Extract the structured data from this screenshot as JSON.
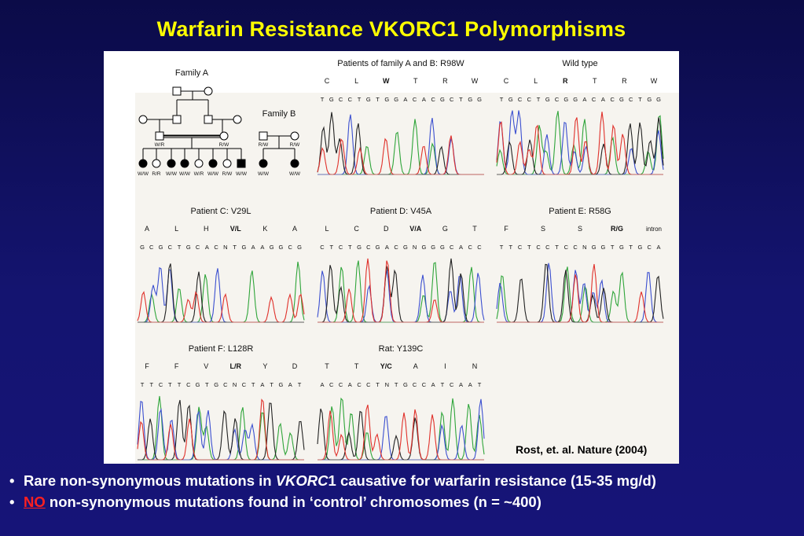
{
  "slide": {
    "title": "Warfarin Resistance VKORC1 Polymorphisms",
    "citation": "Rost, et. al. Nature (2004)",
    "bullets": [
      {
        "pre": "Rare non-synonymous mutations in ",
        "gene": "VKORC",
        "post": "1 causative for warfarin resistance (15-35 mg/d)"
      },
      {
        "flag": "NO",
        "post": " non-synonymous mutations found in ‘control’ chromosomes (n = ~400)"
      }
    ]
  },
  "pedigree": {
    "family_a": {
      "label": "Family A",
      "parent_genotypes": [
        "W/R",
        "R/W"
      ],
      "children_genotypes": [
        "W/W",
        "R/R",
        "W/W",
        "W/W",
        "W/R",
        "W/W",
        "R/W",
        "W/W"
      ]
    },
    "family_b": {
      "label": "Family B",
      "parent_genotypes": [
        "R/W",
        "R/W"
      ],
      "children_genotypes": [
        "W/W",
        "W/W"
      ]
    }
  },
  "panels": [
    {
      "title": "Patients of family A and B: R98W",
      "aa": [
        "C",
        "L",
        "W",
        "T",
        "R",
        "W"
      ],
      "bold": [
        2
      ],
      "seq": "TGCCTGTGGACACGCTGG"
    },
    {
      "title": "Wild type",
      "aa": [
        "C",
        "L",
        "R",
        "T",
        "R",
        "W"
      ],
      "bold": [
        2
      ],
      "seq": "TGCCTGCGGACACGCTGG"
    },
    {
      "title": "Patient C: V29L",
      "aa": [
        "A",
        "L",
        "H",
        "V/L",
        "K",
        "A"
      ],
      "bold": [
        3
      ],
      "seq": "GCGCTGCACNTGAAGGCG"
    },
    {
      "title": "Patient D: V45A",
      "aa": [
        "L",
        "C",
        "D",
        "V/A",
        "G",
        "T"
      ],
      "bold": [
        3
      ],
      "seq": "CTCTGCGACGNGGGCACC"
    },
    {
      "title": "Patient E: R58G",
      "aa": [
        "F",
        "S",
        "S",
        "R/G",
        "intron"
      ],
      "bold": [
        3
      ],
      "seq": "TTCTCCTCCNGGTGTGCA"
    },
    {
      "title": "Patient F: L128R",
      "aa": [
        "F",
        "F",
        "V",
        "L/R",
        "Y",
        "D"
      ],
      "bold": [
        3
      ],
      "seq": "TTCTTCGTGCNCTATGAT"
    },
    {
      "title": "Rat: Y139C",
      "aa": [
        "T",
        "T",
        "Y/C",
        "A",
        "I",
        "N"
      ],
      "bold": [
        2
      ],
      "seq": "ACCACCTNTGCCATCAAT"
    }
  ],
  "colors": {
    "background": "#141470",
    "title": "#ffff00",
    "bullet_text": "#ffffff",
    "flag": "#ff2020",
    "trace_A": "#2fa53a",
    "trace_C": "#3b4fd0",
    "trace_G": "#222222",
    "trace_T": "#e0312b"
  }
}
